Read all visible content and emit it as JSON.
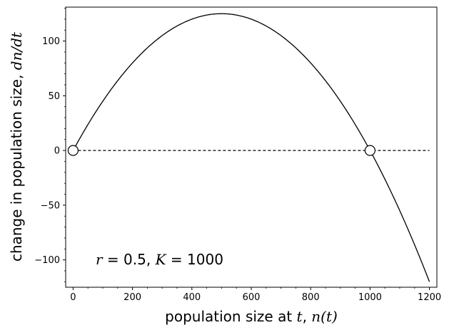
{
  "chart_data": {
    "type": "line",
    "title": "",
    "xlabel": {
      "text": "population size at ",
      "math1": "t",
      "sep": ", ",
      "math2": "n(t)"
    },
    "ylabel": {
      "text": "change in population size, ",
      "math": "dn/dt"
    },
    "xlim": [
      -25,
      1225
    ],
    "ylim": [
      -125,
      131
    ],
    "xticks": [
      0,
      200,
      400,
      600,
      800,
      1000,
      1200
    ],
    "xtick_labels": [
      "0",
      "200",
      "400",
      "600",
      "800",
      "1000",
      "1200"
    ],
    "yticks": [
      -100,
      -50,
      0,
      50,
      100
    ],
    "ytick_labels": [
      "−100",
      "−50",
      "0",
      "50",
      "100"
    ],
    "grid": false,
    "r": 0.5,
    "K": 1000,
    "x_range": [
      0,
      1200
    ],
    "series": [
      {
        "style": "solid",
        "color": "#000000"
      },
      {
        "style": "dashed",
        "color": "#000000",
        "values": [
          0,
          0
        ],
        "x": [
          0,
          1200
        ]
      }
    ],
    "equilibria": [
      {
        "x": 0,
        "y": 0
      },
      {
        "x": 1000,
        "y": 0
      }
    ],
    "annotation": {
      "r_label": "r",
      "r_eq": " = ",
      "r_value": "0.5",
      "sep": ", ",
      "K_label": "K",
      "K_eq": " = ",
      "K_value": "1000"
    }
  }
}
